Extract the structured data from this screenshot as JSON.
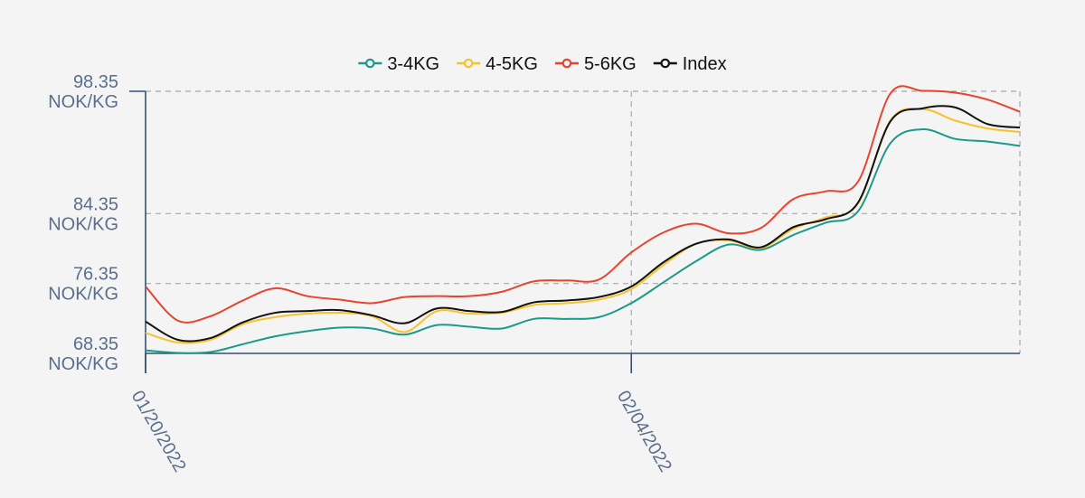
{
  "chart_data": {
    "type": "line",
    "title": "",
    "xlabel": "",
    "ylabel": "",
    "y_unit": "NOK/KG",
    "ylim": [
      68.35,
      98.35
    ],
    "y_ticks": [
      68.35,
      76.35,
      84.35,
      98.35
    ],
    "x_ticks": [
      "01/20/2022",
      "02/04/2022"
    ],
    "grid": true,
    "legend_position": "top-center",
    "x": [
      "01/20/2022",
      "01/21/2022",
      "01/22/2022",
      "01/23/2022",
      "01/24/2022",
      "01/25/2022",
      "01/26/2022",
      "01/27/2022",
      "01/28/2022",
      "01/29/2022",
      "01/30/2022",
      "01/31/2022",
      "02/01/2022",
      "02/02/2022",
      "02/03/2022",
      "02/04/2022",
      "02/05/2022",
      "02/06/2022",
      "02/07/2022",
      "02/08/2022",
      "02/09/2022",
      "02/10/2022",
      "02/11/2022",
      "02/12/2022",
      "02/13/2022",
      "02/14/2022",
      "02/15/2022",
      "02/16/2022"
    ],
    "series": [
      {
        "name": "3-4KG",
        "color": "#1a9a8a",
        "values": [
          68.7,
          68.4,
          68.5,
          69.4,
          70.3,
          70.9,
          71.3,
          71.2,
          70.5,
          71.6,
          71.4,
          71.2,
          72.3,
          72.3,
          72.5,
          74.1,
          76.5,
          78.9,
          80.8,
          80.2,
          81.9,
          83.3,
          84.6,
          92.4,
          94.0,
          92.9,
          92.6,
          92.1
        ]
      },
      {
        "name": "4-5KG",
        "color": "#f5c32c",
        "values": [
          70.7,
          69.6,
          69.9,
          71.7,
          72.5,
          72.9,
          73.0,
          72.6,
          70.8,
          73.2,
          72.9,
          73.0,
          73.9,
          74.1,
          74.5,
          75.7,
          78.5,
          80.9,
          81.3,
          80.4,
          82.6,
          83.9,
          85.5,
          95.0,
          96.3,
          95.0,
          94.1,
          93.7
        ]
      },
      {
        "name": "5-6KG",
        "color": "#e74430",
        "values": [
          76.0,
          72.1,
          72.6,
          74.4,
          75.8,
          74.9,
          74.5,
          74.1,
          74.8,
          74.9,
          74.9,
          75.4,
          76.6,
          76.7,
          76.8,
          79.9,
          82.2,
          83.2,
          82.1,
          82.7,
          86.0,
          86.9,
          88.0,
          98.1,
          98.4,
          98.2,
          97.4,
          96.0
        ]
      },
      {
        "name": "Index",
        "color": "#111111",
        "values": [
          72.0,
          69.9,
          70.1,
          71.9,
          73.0,
          73.2,
          73.3,
          72.7,
          71.8,
          73.5,
          73.2,
          73.1,
          74.2,
          74.4,
          74.8,
          76.0,
          78.8,
          80.9,
          81.4,
          80.5,
          82.8,
          83.7,
          85.6,
          94.9,
          96.4,
          96.5,
          94.6,
          94.2
        ]
      }
    ]
  }
}
